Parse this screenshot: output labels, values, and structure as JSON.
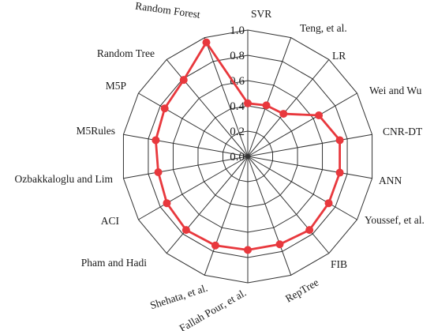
{
  "chart_data": {
    "type": "radar",
    "title": "",
    "categories": [
      "SVR",
      "Teng, et al.",
      "LR",
      "Wei and Wu",
      "CNR-DT",
      "ANN",
      "Youssef, et al.",
      "FIB",
      "RepTree",
      "Fallah Pour, et al.",
      "Shehata, et al.",
      "Pham and Hadi",
      "ACI",
      "Ozbakkaloglu and Lim",
      "M5Rules",
      "M5P",
      "Random Tree",
      "Random Forest"
    ],
    "tick_labels": [
      "0.0",
      "0.2",
      "0.4",
      "0.6",
      "0.8",
      "1.0"
    ],
    "rlim": [
      0,
      1
    ],
    "grid": true,
    "legend": "none",
    "series": [
      {
        "values": [
          0.42,
          0.43,
          0.44,
          0.65,
          0.74,
          0.74,
          0.74,
          0.76,
          0.74,
          0.74,
          0.75,
          0.76,
          0.74,
          0.72,
          0.74,
          0.76,
          0.79,
          0.96
        ],
        "color": "#e8383d"
      }
    ],
    "colors": {
      "grid": "#333333",
      "series": "#e8383d",
      "marker": "#e8383d"
    }
  }
}
